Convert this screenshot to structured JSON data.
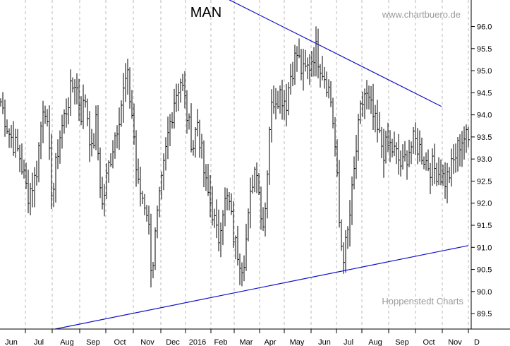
{
  "chart_data": {
    "type": "bar",
    "subtype": "ohlc",
    "title": "MAN",
    "watermark_top": "www.chartbuero.de",
    "watermark_bottom": "Hoppenstedt Charts",
    "ylim": [
      89.15,
      96.6
    ],
    "y_ticks": [
      "89.5",
      "90.0",
      "90.5",
      "91.0",
      "91.5",
      "92.0",
      "92.5",
      "93.0",
      "93.5",
      "94.0",
      "94.5",
      "95.0",
      "95.5",
      "96.0"
    ],
    "y_tick_values": [
      89.5,
      90.0,
      90.5,
      91.0,
      91.5,
      92.0,
      92.5,
      93.0,
      93.5,
      94.0,
      94.5,
      95.0,
      95.5,
      96.0
    ],
    "x_months": [
      "Jun",
      "Jul",
      "Aug",
      "Sep",
      "Oct",
      "Nov",
      "Dec",
      "2016",
      "Feb",
      "Mar",
      "Apr",
      "May",
      "Jun",
      "Jul",
      "Aug",
      "Sep",
      "Oct",
      "Nov",
      "D"
    ],
    "grid": "vertical dashed",
    "price_waypoints": [
      [
        0,
        94.3
      ],
      [
        4,
        93.6
      ],
      [
        9,
        93.1
      ],
      [
        13,
        92.2
      ],
      [
        17,
        92.6
      ],
      [
        21,
        94.5
      ],
      [
        25,
        92.1
      ],
      [
        28,
        93.4
      ],
      [
        33,
        94.4
      ],
      [
        36,
        94.8
      ],
      [
        39,
        94.0
      ],
      [
        41,
        94.4
      ],
      [
        44,
        93.1
      ],
      [
        46,
        93.8
      ],
      [
        49,
        91.9
      ],
      [
        52,
        92.8
      ],
      [
        55,
        93.5
      ],
      [
        58,
        94.2
      ],
      [
        61,
        94.9
      ],
      [
        64,
        93.8
      ],
      [
        66,
        92.4
      ],
      [
        69,
        92.1
      ],
      [
        71,
        91.8
      ],
      [
        73,
        90.4
      ],
      [
        75,
        91.4
      ],
      [
        78,
        92.5
      ],
      [
        81,
        93.6
      ],
      [
        84,
        94.4
      ],
      [
        87,
        94.8
      ],
      [
        89,
        94.3
      ],
      [
        91,
        93.7
      ],
      [
        93,
        93.3
      ],
      [
        95,
        93.9
      ],
      [
        99,
        92.4
      ],
      [
        102,
        91.9
      ],
      [
        105,
        91.1
      ],
      [
        107,
        91.9
      ],
      [
        110,
        92.1
      ],
      [
        113,
        91.1
      ],
      [
        117,
        90.6
      ],
      [
        119,
        91.3
      ],
      [
        122,
        92.7
      ],
      [
        124,
        92.9
      ],
      [
        126,
        91.5
      ],
      [
        128,
        92.0
      ],
      [
        130,
        93.9
      ],
      [
        132,
        94.4
      ],
      [
        135,
        94.5
      ],
      [
        138,
        94.3
      ],
      [
        140,
        94.9
      ],
      [
        143,
        95.4
      ],
      [
        146,
        94.9
      ],
      [
        149,
        95.1
      ],
      [
        152,
        95.5
      ],
      [
        155,
        95.1
      ],
      [
        158,
        94.7
      ],
      [
        160,
        94.2
      ],
      [
        162,
        93.0
      ],
      [
        164,
        91.2
      ],
      [
        166,
        90.8
      ],
      [
        168,
        91.4
      ],
      [
        170,
        92.3
      ],
      [
        172,
        93.3
      ],
      [
        174,
        94.1
      ],
      [
        176,
        94.5
      ],
      [
        179,
        94.1
      ],
      [
        182,
        93.6
      ],
      [
        185,
        93.2
      ],
      [
        188,
        93.3
      ],
      [
        191,
        93.1
      ],
      [
        194,
        92.8
      ],
      [
        197,
        93.2
      ],
      [
        200,
        93.4
      ],
      [
        203,
        93.2
      ],
      [
        206,
        92.9
      ],
      [
        209,
        92.8
      ],
      [
        212,
        92.7
      ],
      [
        215,
        92.5
      ],
      [
        218,
        92.8
      ],
      [
        220,
        93.1
      ],
      [
        222,
        93.4
      ],
      [
        224,
        93.5
      ],
      [
        226,
        93.4
      ]
    ],
    "trendline_upper": {
      "from": [
        88.5,
        97.12
      ],
      "to": [
        213,
        94.19
      ]
    },
    "trendline_lower": {
      "from": [
        26.33,
        89.15
      ],
      "to": [
        226,
        91.04
      ]
    },
    "bar_color": "#000000",
    "trendline_color": "#1010c8"
  }
}
